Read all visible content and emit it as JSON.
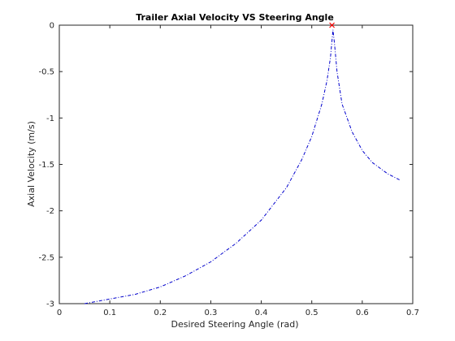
{
  "chart_data": {
    "type": "line",
    "title": "Trailer Axial Velocity VS Steering Angle",
    "xlabel": "Desired Steering Angle (rad)",
    "ylabel": "Axial Velocity (m/s)",
    "xlim": [
      0,
      0.7
    ],
    "ylim": [
      -3,
      0
    ],
    "xticks": [
      0,
      0.1,
      0.2,
      0.3,
      0.4,
      0.5,
      0.6,
      0.7
    ],
    "xtick_labels": [
      "0",
      "0.1",
      "0.2",
      "0.3",
      "0.4",
      "0.5",
      "0.6",
      "0.7"
    ],
    "yticks": [
      0,
      -0.5,
      -1,
      -1.5,
      -2,
      -2.5,
      -3
    ],
    "ytick_labels": [
      "0",
      "-0.5",
      "-1",
      "-1.5",
      "-2",
      "-2.5",
      "-3"
    ],
    "grid": false,
    "series": [
      {
        "color": "#0000cc",
        "line_style": "dash-dot",
        "x": [
          0.05,
          0.1,
          0.15,
          0.2,
          0.25,
          0.3,
          0.35,
          0.4,
          0.45,
          0.48,
          0.5,
          0.52,
          0.53,
          0.537,
          0.542,
          0.545,
          0.55,
          0.56,
          0.58,
          0.6,
          0.62,
          0.65,
          0.675
        ],
        "y": [
          -3.0,
          -2.95,
          -2.9,
          -2.82,
          -2.7,
          -2.55,
          -2.35,
          -2.1,
          -1.75,
          -1.45,
          -1.2,
          -0.85,
          -0.6,
          -0.35,
          -0.05,
          -0.2,
          -0.5,
          -0.85,
          -1.15,
          -1.35,
          -1.48,
          -1.6,
          -1.67
        ]
      }
    ],
    "markers": [
      {
        "x": 0.54,
        "y": 0,
        "color": "#ff0000",
        "symbol": "cross"
      }
    ]
  }
}
